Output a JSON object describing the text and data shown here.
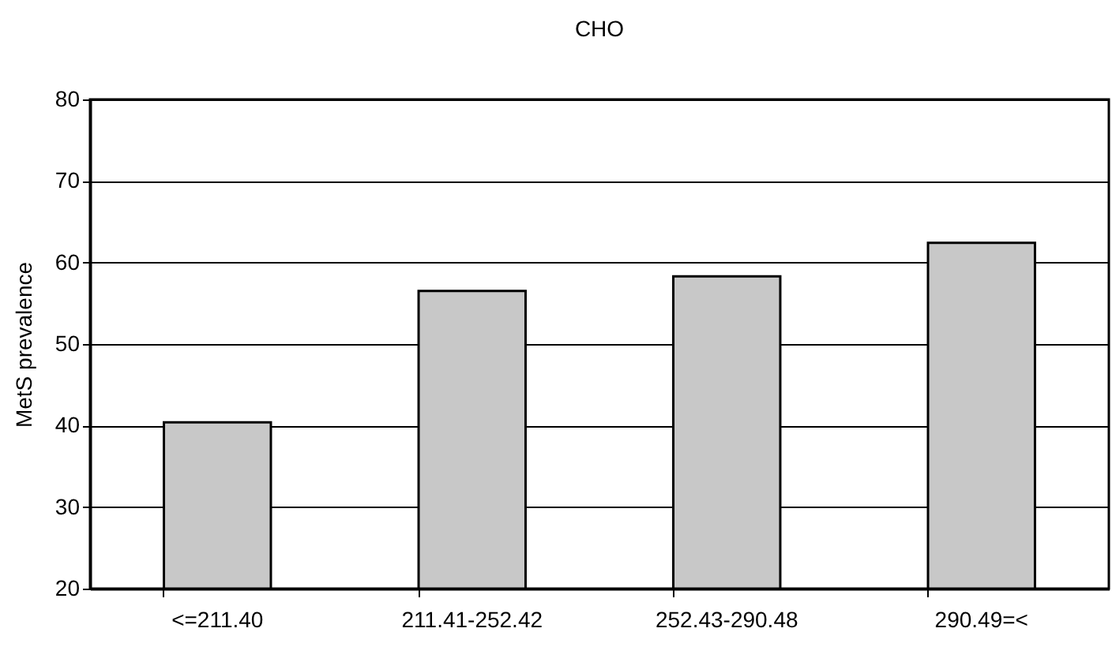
{
  "chart_data": {
    "type": "bar",
    "title": "CHO",
    "ylabel": "MetS prevalence",
    "categories": [
      "<=211.40",
      "211.41-252.42",
      "252.43-290.48",
      "290.49=<"
    ],
    "values": [
      40.4,
      56.5,
      58.3,
      62.4
    ],
    "color": "#c8c8c8",
    "ylim": [
      20,
      80
    ],
    "yticks": [
      20,
      30,
      40,
      50,
      60,
      70,
      80
    ],
    "grid": "y"
  }
}
